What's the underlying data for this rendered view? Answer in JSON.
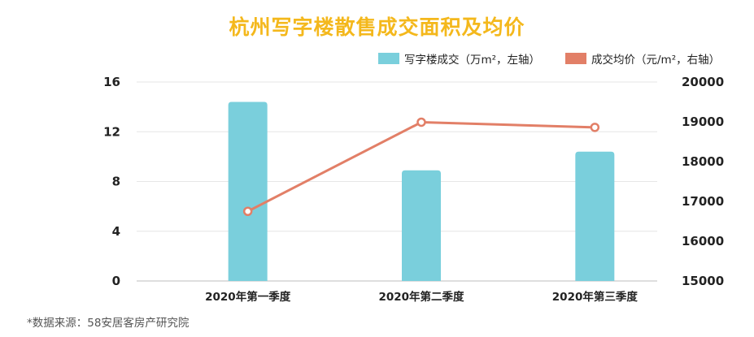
{
  "chart_data": {
    "type": "bar",
    "title": "杭州写字楼散售成交面积及均价",
    "categories": [
      "2020年第一季度",
      "2020年第二季度",
      "2020年第三季度"
    ],
    "series": [
      {
        "name": "写字楼成交（万m²，左轴）",
        "type": "bar",
        "axis": "left",
        "color": "#7ACFDC",
        "values": [
          14.4,
          8.9,
          10.4
        ]
      },
      {
        "name": "成交均价（元/m²，右轴）",
        "type": "line",
        "axis": "right",
        "color": "#E27F67",
        "values": [
          16750,
          18990,
          18860
        ]
      }
    ],
    "ylim_left": [
      0,
      16
    ],
    "yticks_left": [
      "0",
      "4",
      "8",
      "12",
      "16"
    ],
    "ylim_right": [
      15000,
      20000
    ],
    "yticks_right": [
      "15000",
      "16000",
      "17000",
      "18000",
      "19000",
      "20000"
    ],
    "grid": true,
    "legend_position": "top-right"
  },
  "source_note": "*数据来源：58安居客房产研究院"
}
